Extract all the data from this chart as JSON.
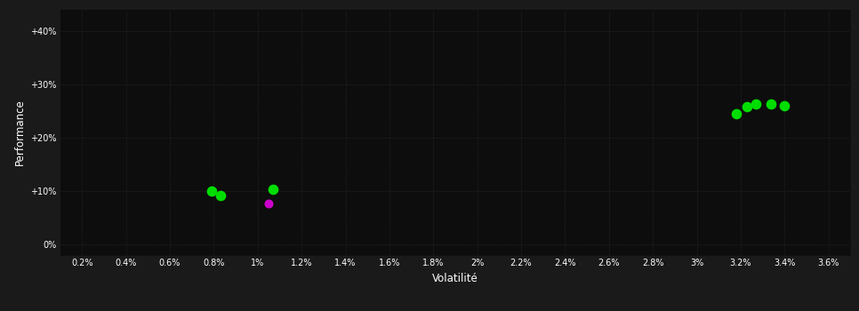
{
  "background_color": "#1a1a1a",
  "plot_bg_color": "#0d0d0d",
  "grid_color": "#2a2a2a",
  "text_color": "#ffffff",
  "xlabel": "Volatilité",
  "ylabel": "Performance",
  "xlim": [
    0.001,
    0.037
  ],
  "ylim": [
    -0.02,
    0.44
  ],
  "xticks": [
    0.002,
    0.004,
    0.006,
    0.008,
    0.01,
    0.012,
    0.014,
    0.016,
    0.018,
    0.02,
    0.022,
    0.024,
    0.026,
    0.028,
    0.03,
    0.032,
    0.034,
    0.036
  ],
  "xtick_labels": [
    "0.2%",
    "0.4%",
    "0.6%",
    "0.8%",
    "1%",
    "1.2%",
    "1.4%",
    "1.6%",
    "1.8%",
    "2%",
    "2.2%",
    "2.4%",
    "2.6%",
    "2.8%",
    "3%",
    "3.2%",
    "3.4%",
    "3.6%"
  ],
  "yticks": [
    0.0,
    0.1,
    0.2,
    0.3,
    0.4
  ],
  "ytick_labels": [
    "0%",
    "+10%",
    "+20%",
    "+30%",
    "+40%"
  ],
  "green_points": [
    [
      0.0079,
      0.099
    ],
    [
      0.0083,
      0.091
    ],
    [
      0.0107,
      0.103
    ],
    [
      0.0318,
      0.245
    ],
    [
      0.0323,
      0.257
    ],
    [
      0.0327,
      0.263
    ],
    [
      0.0334,
      0.263
    ],
    [
      0.034,
      0.26
    ]
  ],
  "magenta_points": [
    [
      0.0105,
      0.076
    ]
  ],
  "marker_size": 55,
  "green_color": "#00dd00",
  "magenta_color": "#cc00cc",
  "grid_linestyle": "dotted",
  "grid_linewidth": 0.6,
  "tick_fontsize": 7,
  "label_fontsize": 8.5
}
